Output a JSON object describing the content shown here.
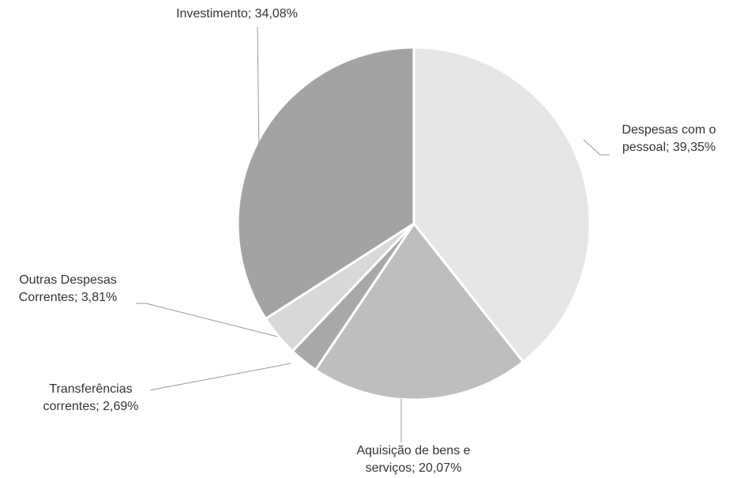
{
  "chart_data": {
    "type": "pie",
    "values": [
      39.35,
      20.07,
      2.69,
      3.81,
      34.08
    ],
    "value_labels": [
      "Despesas com o pessoal; 39,35%",
      "Aquisição de bens e serviços; 20,07%",
      "Transferências correntes; 2,69%",
      "Outras Despesas Correntes; 3,81%",
      "Investimento; 34,08%"
    ],
    "colors": [
      "#e6e6e6",
      "#bebebe",
      "#a9a9a9",
      "#d8d8d8",
      "#a3a3a3"
    ]
  }
}
